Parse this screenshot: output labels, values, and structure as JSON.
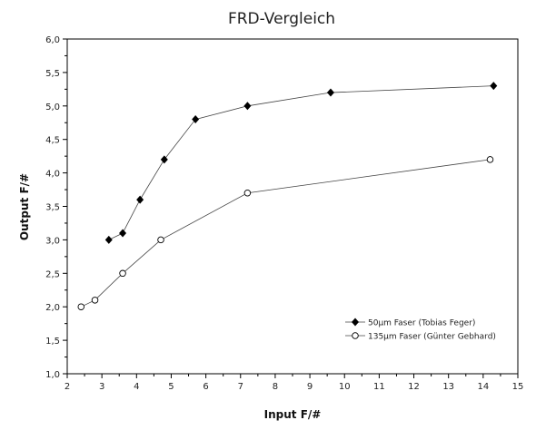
{
  "chart_data": {
    "type": "line",
    "title": "FRD-Vergleich",
    "xlabel": "Input F/#",
    "ylabel": "Output F/#",
    "xlim": [
      2,
      15
    ],
    "ylim": [
      1.0,
      6.0
    ],
    "xticks": [
      "2",
      "3",
      "4",
      "5",
      "6",
      "7",
      "8",
      "9",
      "10",
      "11",
      "12",
      "13",
      "14",
      "15"
    ],
    "yticks": [
      "1,0",
      "1,5",
      "2,0",
      "2,5",
      "3,0",
      "3,5",
      "4,0",
      "4,5",
      "5,0",
      "5,5",
      "6,0"
    ],
    "grid": false,
    "legend_position": "bottom-right",
    "series": [
      {
        "name": "50µm Faser (Tobias Feger)",
        "marker": "filled-diamond",
        "color": "#000000",
        "x": [
          3.2,
          3.6,
          4.1,
          4.8,
          5.7,
          7.2,
          9.6,
          14.3
        ],
        "y": [
          3.0,
          3.1,
          3.6,
          4.2,
          4.8,
          5.0,
          5.2,
          5.3
        ]
      },
      {
        "name": "135µm Faser (Günter Gebhard)",
        "marker": "open-circle",
        "color": "#000000",
        "x": [
          2.4,
          2.8,
          3.6,
          4.7,
          7.2,
          14.2
        ],
        "y": [
          2.0,
          2.1,
          2.5,
          3.0,
          3.7,
          4.2
        ]
      }
    ]
  }
}
